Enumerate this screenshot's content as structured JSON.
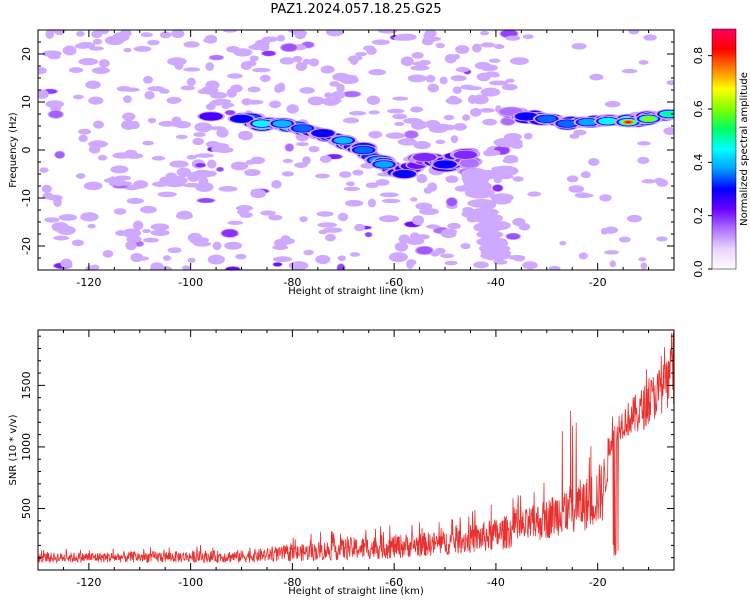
{
  "title": "PAZ1.2024.057.18.25.G25",
  "chart_data": [
    {
      "type": "heatmap",
      "xlabel": "Height of straight line (km)",
      "ylabel": "Frequency (Hz)",
      "xlim": [
        -130,
        -5
      ],
      "ylim": [
        -25,
        25
      ],
      "xticks": [
        -120,
        -100,
        -80,
        -60,
        -40,
        -20
      ],
      "yticks": [
        -20,
        -10,
        0,
        10,
        20
      ],
      "colorbar": {
        "label": "Normalized spectral amplitude",
        "range": [
          0,
          0.9
        ],
        "ticks": [
          0.0,
          0.2,
          0.4,
          0.6,
          0.8
        ],
        "tick_labels": [
          "0.0",
          "0.2",
          "0.4",
          "0.6",
          "0.8"
        ],
        "colormap": [
          "#ffffff",
          "#e8d4ff",
          "#b070ff",
          "#6a00ff",
          "#0000ff",
          "#00a0ff",
          "#00ffff",
          "#00ff60",
          "#80ff00",
          "#ffff00",
          "#ff8000",
          "#ff0000",
          "#ff0060"
        ]
      },
      "main_track": [
        [
          -96,
          7,
          0.25
        ],
        [
          -90,
          6.5,
          0.3
        ],
        [
          -86,
          5.5,
          0.45
        ],
        [
          -82,
          5.5,
          0.4
        ],
        [
          -78,
          4.5,
          0.35
        ],
        [
          -74,
          3.5,
          0.3
        ],
        [
          -70,
          2,
          0.4
        ],
        [
          -66,
          0,
          0.35
        ],
        [
          -62,
          -3,
          0.38
        ],
        [
          -58,
          -5,
          0.3
        ],
        [
          -54,
          -1.5,
          0.2
        ],
        [
          -50,
          -3,
          0.3
        ],
        [
          -46,
          -1,
          0.2
        ],
        [
          -44,
          -6,
          0.12
        ],
        [
          -42,
          -14,
          0.1
        ],
        [
          -40,
          -22,
          0.08
        ],
        [
          -37,
          8,
          0.15
        ],
        [
          -34,
          7,
          0.3
        ],
        [
          -30,
          6.5,
          0.35
        ],
        [
          -26,
          5.5,
          0.35
        ],
        [
          -22,
          5.8,
          0.38
        ],
        [
          -18,
          6,
          0.45
        ],
        [
          -14,
          5.8,
          0.85
        ],
        [
          -10,
          6.5,
          0.6
        ],
        [
          -6,
          7.5,
          0.5
        ]
      ]
    },
    {
      "type": "line",
      "xlabel": "Height of straight line (km)",
      "ylabel": "SNR (10 * v/v)",
      "xlim": [
        -130,
        -5
      ],
      "ylim": [
        0,
        1950
      ],
      "xticks": [
        -120,
        -100,
        -80,
        -60,
        -40,
        -20
      ],
      "yticks": [
        500,
        1000,
        1500
      ],
      "series": [
        {
          "color": "#e8302e",
          "envelope": [
            [
              -130,
              60,
              140
            ],
            [
              -110,
              60,
              150
            ],
            [
              -90,
              60,
              160
            ],
            [
              -80,
              70,
              200
            ],
            [
              -70,
              80,
              260
            ],
            [
              -60,
              90,
              290
            ],
            [
              -50,
              120,
              320
            ],
            [
              -40,
              150,
              420
            ],
            [
              -35,
              200,
              480
            ],
            [
              -30,
              250,
              580
            ],
            [
              -26,
              300,
              700
            ],
            [
              -22,
              320,
              760
            ],
            [
              -19,
              380,
              900
            ],
            [
              -17,
              1050,
              1250
            ],
            [
              -12,
              1100,
              1450
            ],
            [
              -8,
              1250,
              1650
            ],
            [
              -5,
              1350,
              1750
            ]
          ]
        }
      ]
    }
  ]
}
